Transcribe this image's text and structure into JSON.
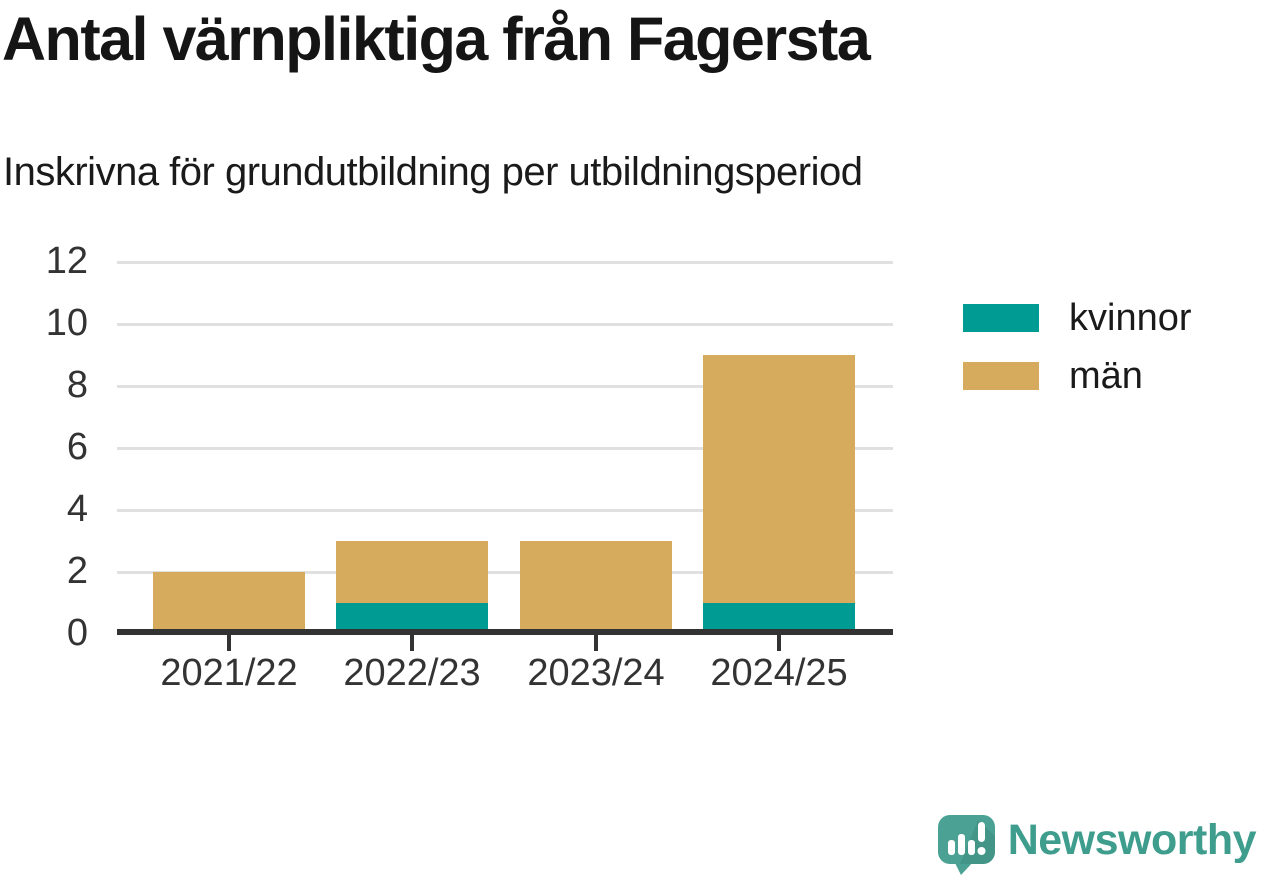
{
  "title": "Antal värnpliktiga från Fagersta",
  "subtitle": "Inskrivna för grundutbildning per utbildningsperiod",
  "chart_data": {
    "type": "bar",
    "stacked": true,
    "title": "Antal värnpliktiga från Fagersta",
    "subtitle": "Inskrivna för grundutbildning per utbildningsperiod",
    "categories": [
      "2021/22",
      "2022/23",
      "2023/24",
      "2024/25"
    ],
    "series": [
      {
        "name": "kvinnor",
        "color": "#009c93",
        "values": [
          0,
          1,
          0,
          1
        ]
      },
      {
        "name": "män",
        "color": "#d7ab5e",
        "values": [
          2,
          2,
          3,
          8
        ]
      }
    ],
    "totals": [
      2,
      3,
      3,
      9
    ],
    "xlabel": "",
    "ylabel": "",
    "ylim": [
      0,
      12
    ],
    "yticks": [
      0,
      2,
      4,
      6,
      8,
      10,
      12
    ],
    "grid": "horizontal",
    "legend_position": "right"
  },
  "colors": {
    "kvinnor": "#009c93",
    "man": "#d7ab5e",
    "axis": "#333333",
    "gridline": "#e0e0e0",
    "text": "#1a1a1a",
    "brand_teal": "#3f9d8d",
    "logo_fill": "#4ba294",
    "logo_shadow": "#3d8d7e"
  },
  "branding": {
    "logo_text": "Newsworthy"
  }
}
